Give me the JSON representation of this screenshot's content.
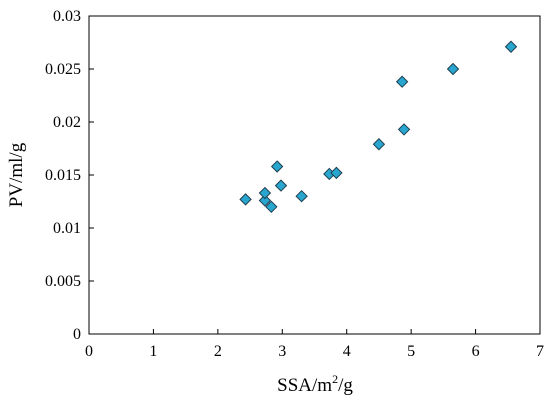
{
  "chart_data": {
    "type": "scatter",
    "title": "",
    "xlabel": "SSA/m",
    "xlabel_superscript": "2",
    "xlabel_suffix": "/g",
    "ylabel": "PV/ml/g",
    "xlim": [
      0,
      7
    ],
    "ylim": [
      0,
      0.03
    ],
    "xticks": [
      "0",
      "1",
      "2",
      "3",
      "4",
      "5",
      "6",
      "7"
    ],
    "yticks": [
      "0",
      "0.005",
      "0.01",
      "0.015",
      "0.02",
      "0.025",
      "0.03"
    ],
    "grid": false,
    "marker": "diamond",
    "marker_color": "#29a6cf",
    "series": [
      {
        "points": [
          {
            "x": 2.43,
            "y": 0.0127
          },
          {
            "x": 2.73,
            "y": 0.0126
          },
          {
            "x": 2.73,
            "y": 0.0133
          },
          {
            "x": 2.83,
            "y": 0.012
          },
          {
            "x": 2.92,
            "y": 0.0158
          },
          {
            "x": 2.98,
            "y": 0.014
          },
          {
            "x": 3.3,
            "y": 0.013
          },
          {
            "x": 3.73,
            "y": 0.0151
          },
          {
            "x": 3.84,
            "y": 0.0152
          },
          {
            "x": 4.5,
            "y": 0.0179
          },
          {
            "x": 4.86,
            "y": 0.0238
          },
          {
            "x": 4.89,
            "y": 0.0193
          },
          {
            "x": 5.65,
            "y": 0.025
          },
          {
            "x": 6.55,
            "y": 0.0271
          }
        ]
      }
    ]
  }
}
